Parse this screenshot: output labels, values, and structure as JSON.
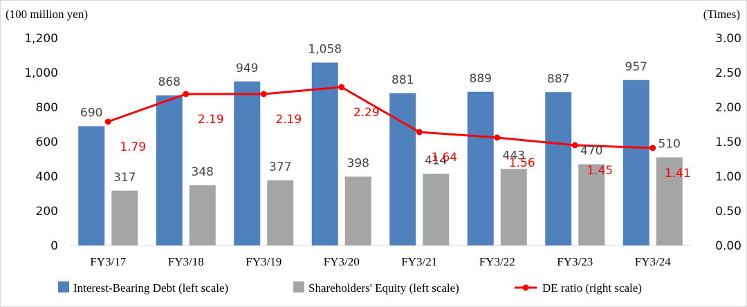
{
  "chart_data": {
    "type": "bar",
    "left_unit": "(100 million yen)",
    "right_unit": "(Times)",
    "categories": [
      "FY3/17",
      "FY3/18",
      "FY3/19",
      "FY3/20",
      "FY3/21",
      "FY3/22",
      "FY3/23",
      "FY3/24"
    ],
    "left_ticks": [
      "0",
      "200",
      "400",
      "600",
      "800",
      "1,000",
      "1,200"
    ],
    "right_ticks": [
      "0.00",
      "0.50",
      "1.00",
      "1.50",
      "2.00",
      "2.50",
      "3.00"
    ],
    "ylim_left": [
      0,
      1200
    ],
    "ylim_right": [
      0,
      3
    ],
    "series": [
      {
        "name": "Interest-Bearing Debt (left scale)",
        "type": "bar",
        "axis": "left",
        "color": "#4f81bd",
        "values": [
          690,
          868,
          949,
          1058,
          881,
          889,
          887,
          957
        ],
        "labels": [
          "690",
          "868",
          "949",
          "1,058",
          "881",
          "889",
          "887",
          "957"
        ]
      },
      {
        "name": "Shareholders' Equity (left scale)",
        "type": "bar",
        "axis": "left",
        "color": "#a5a5a5",
        "values": [
          317,
          348,
          377,
          398,
          414,
          443,
          470,
          510
        ],
        "labels": [
          "317",
          "348",
          "377",
          "398",
          "414",
          "443",
          "470",
          "510"
        ]
      },
      {
        "name": "DE ratio (right scale)",
        "type": "line",
        "axis": "right",
        "color": "#ff0000",
        "values": [
          1.79,
          2.19,
          2.19,
          2.29,
          1.64,
          1.56,
          1.45,
          1.41
        ],
        "labels": [
          "1.79",
          "2.19",
          "2.19",
          "2.29",
          "1.64",
          "1.56",
          "1.45",
          "1.41"
        ]
      }
    ],
    "legend_position": "bottom",
    "grid": false
  }
}
